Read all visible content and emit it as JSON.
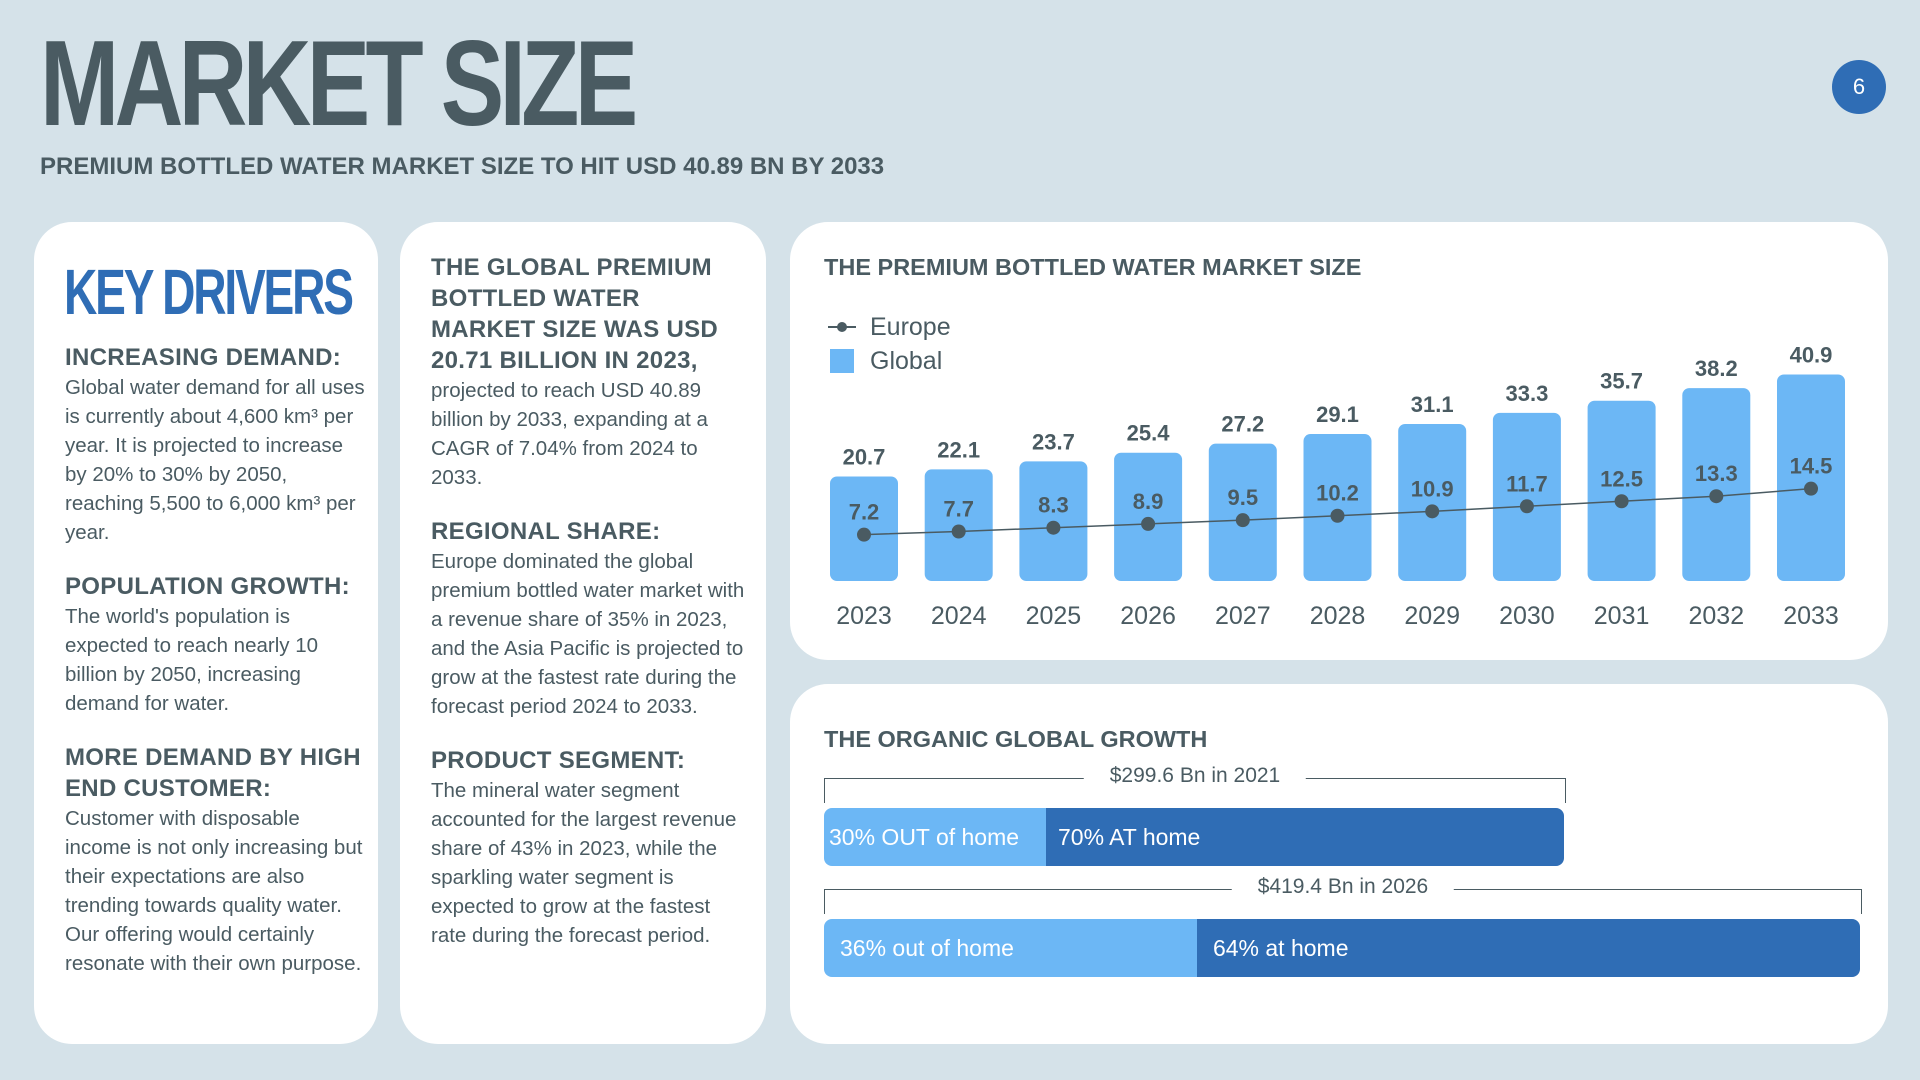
{
  "header": {
    "title": "MARKET SIZE",
    "subtitle": "PREMIUM BOTTLED WATER MARKET SIZE TO HIT USD 40.89 BN BY 2033",
    "page_number": "6"
  },
  "key_drivers": {
    "title": "KEY DRIVERS",
    "sections": [
      {
        "heading": "INCREASING DEMAND:",
        "body": "Global water demand for all uses is currently about 4,600 km³ per year. It is projected to increase by 20% to 30% by 2050, reaching 5,500 to 6,000 km³ per year."
      },
      {
        "heading": "POPULATION GROWTH:",
        "body": "The world's population is expected to reach nearly 10 billion by 2050, increasing demand for water."
      },
      {
        "heading": "MORE DEMAND BY HIGH END CUSTOMER:",
        "body": "Customer with disposable income is not only increasing but their expectations are also trending towards quality water. Our offering would certainly resonate with their own purpose."
      }
    ]
  },
  "market_info": {
    "intro_heading": "THE GLOBAL PREMIUM BOTTLED WATER MARKET SIZE WAS USD 20.71 BILLION IN 2023,",
    "intro_body": "projected to reach USD 40.89 billion by 2033, expanding at a CAGR of 7.04% from 2024 to 2033.",
    "sections": [
      {
        "heading": "REGIONAL SHARE:",
        "body": "Europe dominated the global premium bottled water market with a revenue share of 35% in 2023, and the Asia Pacific is projected to grow at the fastest rate during the forecast period 2024 to 2033."
      },
      {
        "heading": "PRODUCT SEGMENT:",
        "body": "The mineral water segment accounted for the largest revenue share of 43% in 2023, while the sparkling water segment is expected to grow at the fastest rate during the forecast period."
      }
    ]
  },
  "chart_data": [
    {
      "type": "bar",
      "title": "THE PREMIUM BOTTLED WATER MARKET SIZE",
      "categories": [
        "2023",
        "2024",
        "2025",
        "2026",
        "2027",
        "2028",
        "2029",
        "2030",
        "2031",
        "2032",
        "2033"
      ],
      "series": [
        {
          "name": "Global",
          "kind": "bar",
          "color": "#6cb7f5",
          "values": [
            20.7,
            22.1,
            23.7,
            25.4,
            27.2,
            29.1,
            31.1,
            33.3,
            35.7,
            38.2,
            40.9
          ]
        },
        {
          "name": "Europe",
          "kind": "line",
          "color": "#4a5b62",
          "values": [
            7.2,
            7.7,
            8.3,
            8.9,
            9.5,
            10.2,
            10.9,
            11.7,
            12.5,
            13.3,
            14.5
          ]
        }
      ],
      "legend": "top-left",
      "grid": false
    },
    {
      "type": "bar",
      "title": "THE ORGANIC GLOBAL GROWTH",
      "orientation": "horizontal-stacked",
      "bars": [
        {
          "label": "$299.6 Bn in 2021",
          "total": 299.6,
          "segments": [
            {
              "label": "30% OUT of home",
              "share": 30,
              "color": "#6cb7f5"
            },
            {
              "label": "70% AT home",
              "share": 70,
              "color": "#2f6db5"
            }
          ]
        },
        {
          "label": "$419.4 Bn in 2026",
          "total": 419.4,
          "segments": [
            {
              "label": "36% out of home",
              "share": 36,
              "color": "#6cb7f5"
            },
            {
              "label": "64% at home",
              "share": 64,
              "color": "#2f6db5"
            }
          ]
        }
      ]
    }
  ]
}
